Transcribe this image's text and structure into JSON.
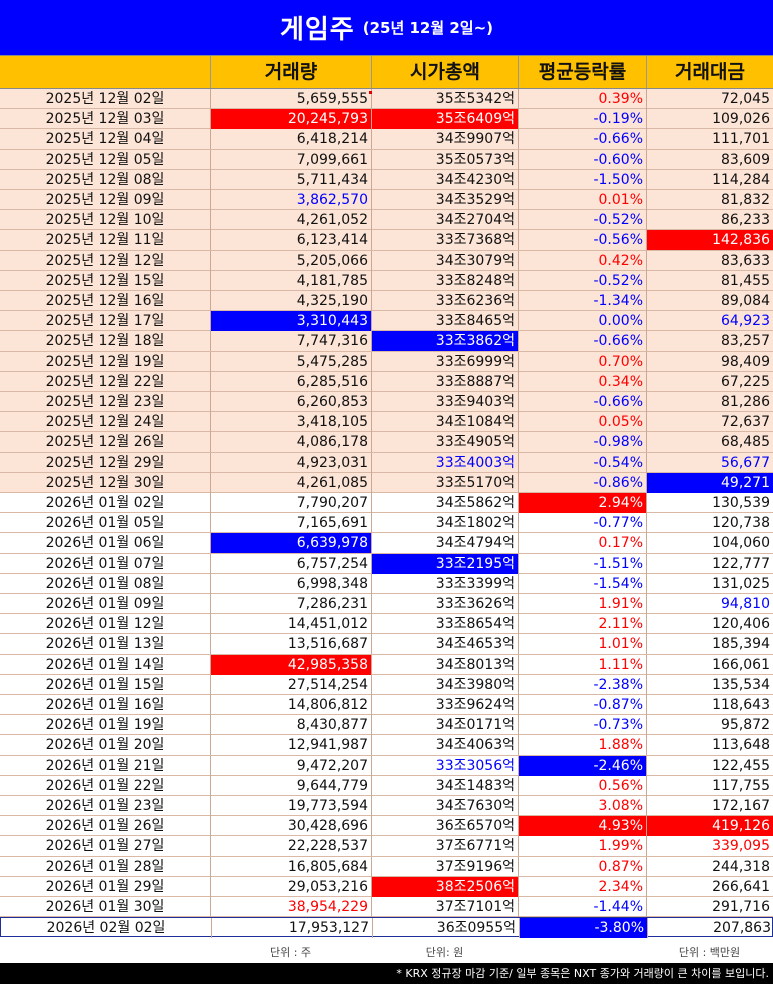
{
  "title": {
    "main": "게임주",
    "sub": "(25년 12월 2일~)"
  },
  "colors": {
    "title_bg": "#0000ff",
    "header_bg": "#ffc000",
    "row_bg_2025": "#fce4d6",
    "row_bg_2026": "#ffffff",
    "highlight_red": "#ff0000",
    "highlight_blue": "#0000ff",
    "text_red": "#ff0000",
    "text_blue": "#0000ff",
    "text_default": "#111111"
  },
  "headers": [
    "거래량",
    "시가총액",
    "평균등락률",
    "거래대금"
  ],
  "rows": [
    {
      "date": "2025년 12월 02일",
      "vol": "5,659,555",
      "cap": "35조5342억",
      "chg": "0.39%",
      "amt": "72,045",
      "chg_color": "red"
    },
    {
      "date": "2025년 12월 03일",
      "vol": "20,245,793",
      "vol_bg": "red",
      "cap": "35조6409억",
      "cap_bg": "red",
      "chg": "-0.19%",
      "amt": "109,026",
      "chg_color": "blue"
    },
    {
      "date": "2025년 12월 04일",
      "vol": "6,418,214",
      "cap": "34조9907억",
      "chg": "-0.66%",
      "amt": "111,701",
      "chg_color": "blue"
    },
    {
      "date": "2025년 12월 05일",
      "vol": "7,099,661",
      "cap": "35조0573억",
      "chg": "-0.60%",
      "amt": "83,609",
      "chg_color": "blue"
    },
    {
      "date": "2025년 12월 08일",
      "vol": "5,711,434",
      "cap": "34조4230억",
      "chg": "-1.50%",
      "amt": "114,284",
      "chg_color": "blue"
    },
    {
      "date": "2025년 12월 09일",
      "vol": "3,862,570",
      "vol_color": "blue",
      "cap": "34조3529억",
      "chg": "0.01%",
      "amt": "81,832",
      "chg_color": "red"
    },
    {
      "date": "2025년 12월 10일",
      "vol": "4,261,052",
      "cap": "34조2704억",
      "chg": "-0.52%",
      "amt": "86,233",
      "chg_color": "blue"
    },
    {
      "date": "2025년 12월 11일",
      "vol": "6,123,414",
      "cap": "33조7368억",
      "chg": "-0.56%",
      "amt": "142,836",
      "amt_bg": "red",
      "chg_color": "blue"
    },
    {
      "date": "2025년 12월 12일",
      "vol": "5,205,066",
      "cap": "34조3079억",
      "chg": "0.42%",
      "amt": "83,633",
      "chg_color": "red"
    },
    {
      "date": "2025년 12월 15일",
      "vol": "4,181,785",
      "cap": "33조8248억",
      "chg": "-0.52%",
      "amt": "81,455",
      "chg_color": "blue"
    },
    {
      "date": "2025년 12월 16일",
      "vol": "4,325,190",
      "cap": "33조6236억",
      "chg": "-1.34%",
      "amt": "89,084",
      "chg_color": "blue"
    },
    {
      "date": "2025년 12월 17일",
      "vol": "3,310,443",
      "vol_bg": "blue",
      "cap": "33조8465억",
      "chg": "0.00%",
      "amt": "64,923",
      "amt_color": "blue",
      "chg_color": "blue"
    },
    {
      "date": "2025년 12월 18일",
      "vol": "7,747,316",
      "cap": "33조3862억",
      "cap_bg": "blue",
      "chg": "-0.66%",
      "amt": "83,257",
      "chg_color": "blue"
    },
    {
      "date": "2025년 12월 19일",
      "vol": "5,475,285",
      "cap": "33조6999억",
      "chg": "0.70%",
      "amt": "98,409",
      "chg_color": "red"
    },
    {
      "date": "2025년 12월 22일",
      "vol": "6,285,516",
      "cap": "33조8887억",
      "chg": "0.34%",
      "amt": "67,225",
      "chg_color": "red"
    },
    {
      "date": "2025년 12월 23일",
      "vol": "6,260,853",
      "cap": "33조9403억",
      "chg": "-0.66%",
      "amt": "81,286",
      "chg_color": "blue"
    },
    {
      "date": "2025년 12월 24일",
      "vol": "3,418,105",
      "cap": "34조1084억",
      "chg": "0.05%",
      "amt": "72,637",
      "chg_color": "red"
    },
    {
      "date": "2025년 12월 26일",
      "vol": "4,086,178",
      "cap": "33조4905억",
      "chg": "-0.98%",
      "amt": "68,485",
      "chg_color": "blue"
    },
    {
      "date": "2025년 12월 29일",
      "vol": "4,923,031",
      "cap": "33조4003억",
      "cap_color": "blue",
      "chg": "-0.54%",
      "amt": "56,677",
      "amt_color": "blue",
      "chg_color": "blue"
    },
    {
      "date": "2025년 12월 30일",
      "vol": "4,261,085",
      "cap": "33조5170억",
      "chg": "-0.86%",
      "amt": "49,271",
      "amt_bg": "blue",
      "chg_color": "blue"
    },
    {
      "date": "2026년 01월 02일",
      "vol": "7,790,207",
      "cap": "34조5862억",
      "chg": "2.94%",
      "chg_bg": "red",
      "amt": "130,539"
    },
    {
      "date": "2026년 01월 05일",
      "vol": "7,165,691",
      "cap": "34조1802억",
      "chg": "-0.77%",
      "amt": "120,738",
      "chg_color": "blue"
    },
    {
      "date": "2026년 01월 06일",
      "vol": "6,639,978",
      "vol_bg": "blue",
      "cap": "34조4794억",
      "chg": "0.17%",
      "amt": "104,060",
      "chg_color": "red"
    },
    {
      "date": "2026년 01월 07일",
      "vol": "6,757,254",
      "cap": "33조2195억",
      "cap_bg": "blue",
      "chg": "-1.51%",
      "amt": "122,777",
      "chg_color": "blue"
    },
    {
      "date": "2026년 01월 08일",
      "vol": "6,998,348",
      "cap": "33조3399억",
      "chg": "-1.54%",
      "amt": "131,025",
      "chg_color": "blue"
    },
    {
      "date": "2026년 01월 09일",
      "vol": "7,286,231",
      "cap": "33조3626억",
      "chg": "1.91%",
      "amt": "94,810",
      "amt_color": "blue",
      "chg_color": "red"
    },
    {
      "date": "2026년 01월 12일",
      "vol": "14,451,012",
      "cap": "33조8654억",
      "chg": "2.11%",
      "amt": "120,406",
      "chg_color": "red"
    },
    {
      "date": "2026년 01월 13일",
      "vol": "13,516,687",
      "cap": "34조4653억",
      "chg": "1.01%",
      "amt": "185,394",
      "chg_color": "red"
    },
    {
      "date": "2026년 01월 14일",
      "vol": "42,985,358",
      "vol_bg": "red",
      "cap": "34조8013억",
      "chg": "1.11%",
      "amt": "166,061",
      "chg_color": "red"
    },
    {
      "date": "2026년 01월 15일",
      "vol": "27,514,254",
      "cap": "34조3980억",
      "chg": "-2.38%",
      "amt": "135,534",
      "chg_color": "blue"
    },
    {
      "date": "2026년 01월 16일",
      "vol": "14,806,812",
      "cap": "33조9624억",
      "chg": "-0.87%",
      "amt": "118,643",
      "chg_color": "blue"
    },
    {
      "date": "2026년 01월 19일",
      "vol": "8,430,877",
      "cap": "34조0171억",
      "chg": "-0.73%",
      "amt": "95,872",
      "chg_color": "blue"
    },
    {
      "date": "2026년 01월 20일",
      "vol": "12,941,987",
      "cap": "34조4063억",
      "chg": "1.88%",
      "amt": "113,648",
      "chg_color": "red"
    },
    {
      "date": "2026년 01월 21일",
      "vol": "9,472,207",
      "cap": "33조3056억",
      "cap_color": "blue",
      "chg": "-2.46%",
      "chg_bg": "blue",
      "amt": "122,455"
    },
    {
      "date": "2026년 01월 22일",
      "vol": "9,644,779",
      "cap": "34조1483억",
      "chg": "0.56%",
      "amt": "117,755",
      "chg_color": "red"
    },
    {
      "date": "2026년 01월 23일",
      "vol": "19,773,594",
      "cap": "34조7630억",
      "chg": "3.08%",
      "amt": "172,167",
      "chg_color": "red"
    },
    {
      "date": "2026년 01월 26일",
      "vol": "30,428,696",
      "cap": "36조6570억",
      "chg": "4.93%",
      "chg_bg": "red",
      "amt": "419,126",
      "amt_bg": "red"
    },
    {
      "date": "2026년 01월 27일",
      "vol": "22,228,537",
      "cap": "37조6771억",
      "chg": "1.99%",
      "amt": "339,095",
      "amt_color": "red",
      "chg_color": "red"
    },
    {
      "date": "2026년 01월 28일",
      "vol": "16,805,684",
      "cap": "37조9196억",
      "chg": "0.87%",
      "amt": "244,318",
      "chg_color": "red"
    },
    {
      "date": "2026년 01월 29일",
      "vol": "29,053,216",
      "cap": "38조2506억",
      "cap_bg": "red",
      "chg": "2.34%",
      "amt": "266,641",
      "chg_color": "red"
    },
    {
      "date": "2026년 01월 30일",
      "vol": "38,954,229",
      "vol_color": "red",
      "cap": "37조7101억",
      "chg": "-1.44%",
      "amt": "291,716",
      "chg_color": "blue"
    },
    {
      "date": "2026년 02월 02일",
      "vol": "17,953,127",
      "cap": "36조0955억",
      "chg": "-3.80%",
      "chg_bg": "blue",
      "amt": "207,863",
      "last": true
    }
  ],
  "units": {
    "vol": "단위 : 주",
    "cap": "단위: 원",
    "amt": "단위 : 백만원"
  },
  "footnote": "* KRX 정규장 마감 기준/ 일부 종목은 NXT 종가와 거래량이 큰 차이를 보입니다."
}
